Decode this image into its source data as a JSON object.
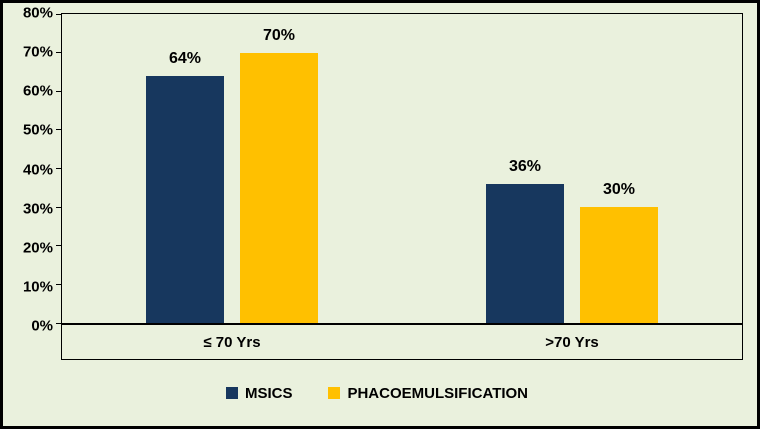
{
  "chart_data": {
    "type": "bar",
    "title": "",
    "categories": [
      "≤ 70 Yrs",
      ">70 Yrs"
    ],
    "series": [
      {
        "name": "MSICS",
        "color": "#17375E",
        "values": [
          64,
          36
        ],
        "labels": [
          "64%",
          "36%"
        ]
      },
      {
        "name": "PHACOEMULSIFICATION",
        "color": "#FFC000",
        "values": [
          70,
          30
        ],
        "labels": [
          "70%",
          "30%"
        ]
      }
    ],
    "ylim": [
      0,
      80
    ],
    "ytick_step": 10,
    "yticks": [
      "80%",
      "70%",
      "60%",
      "50%",
      "40%",
      "30%",
      "20%",
      "10%",
      "0%"
    ],
    "value_suffix": "%",
    "grid": false,
    "legend_position": "bottom",
    "background_color": "#EAF1DD",
    "border_color": "#000000"
  }
}
